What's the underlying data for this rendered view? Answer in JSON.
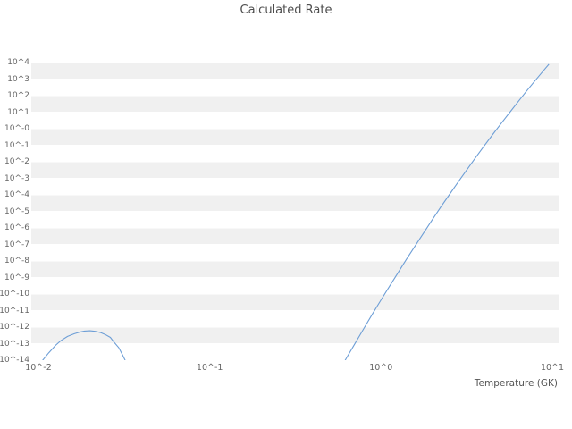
{
  "colors": {
    "line": "#6d9ed6",
    "band": "#f0f0f0",
    "band_separator": "#ffffff",
    "title_text": "#4d4d4d",
    "tick_text": "#666666",
    "axis_label_text": "#555555",
    "background": "#ffffff"
  },
  "chart_data": {
    "type": "line",
    "title": "Calculated Rate",
    "xlabel": "Temperature (GK)",
    "ylabel": "",
    "xscale": "log",
    "yscale": "log",
    "xlim": [
      0.01,
      10
    ],
    "ylim": [
      1e-14,
      10000.0
    ],
    "grid": "alternating-horizontal-decade-bands",
    "legend": "none",
    "x_tick_labels": [
      "10^-2",
      "10^-1",
      "10^0",
      "10^1"
    ],
    "x_tick_values": [
      0.01,
      0.1,
      1,
      10
    ],
    "y_tick_labels": [
      "10^4",
      "10^3",
      "10^2",
      "10^1",
      "10^-0",
      "10^-1",
      "10^-2",
      "10^-3",
      "10^-4",
      "10^-5",
      "10^-6",
      "10^-7",
      "10^-8",
      "10^-9",
      "10^-10",
      "10^-11",
      "10^-12",
      "10^-13",
      "10^-14"
    ],
    "y_tick_values": [
      10000.0,
      1000.0,
      100.0,
      10.0,
      1,
      0.1,
      0.01,
      0.001,
      0.0001,
      1e-05,
      1e-06,
      1e-07,
      1e-08,
      1e-09,
      1e-10,
      1e-11,
      1e-12,
      1e-13,
      1e-14
    ],
    "series": [
      {
        "name": "calculated-rate",
        "x": [
          0.0105,
          0.0115,
          0.0126,
          0.0135,
          0.0148,
          0.0162,
          0.0174,
          0.0186,
          0.02,
          0.0214,
          0.0229,
          0.0245,
          0.0263,
          0.0275,
          0.0295,
          0.0309,
          0.0324,
          0.603,
          0.631,
          0.708,
          0.794,
          0.891,
          1.0,
          1.122,
          1.259,
          1.413,
          1.585,
          1.778,
          1.995,
          2.239,
          2.512,
          2.818,
          3.162,
          3.548,
          3.981,
          4.467,
          5.012,
          5.623,
          6.31,
          7.079,
          7.943,
          8.913,
          9.55
        ],
        "y": [
          8.9e-15,
          2.8e-14,
          7.9e-14,
          1.5e-13,
          2.75e-13,
          4e-13,
          5e-13,
          5.75e-13,
          6e-13,
          5.6e-13,
          4.8e-13,
          3.6e-13,
          2.4e-13,
          1.3e-13,
          5.6e-14,
          2.2e-14,
          7.9e-15,
          6.3e-15,
          1.45e-14,
          1.1e-13,
          8.3e-13,
          6.2e-12,
          4.4e-11,
          3e-10,
          2e-09,
          1.35e-08,
          8.5e-08,
          5.2e-07,
          3.2e-06,
          1.9e-05,
          0.000107,
          0.00059,
          0.0032,
          0.0166,
          0.085,
          0.42,
          2.0,
          9.3,
          42.7,
          191,
          813,
          3388,
          7943
        ]
      }
    ]
  }
}
